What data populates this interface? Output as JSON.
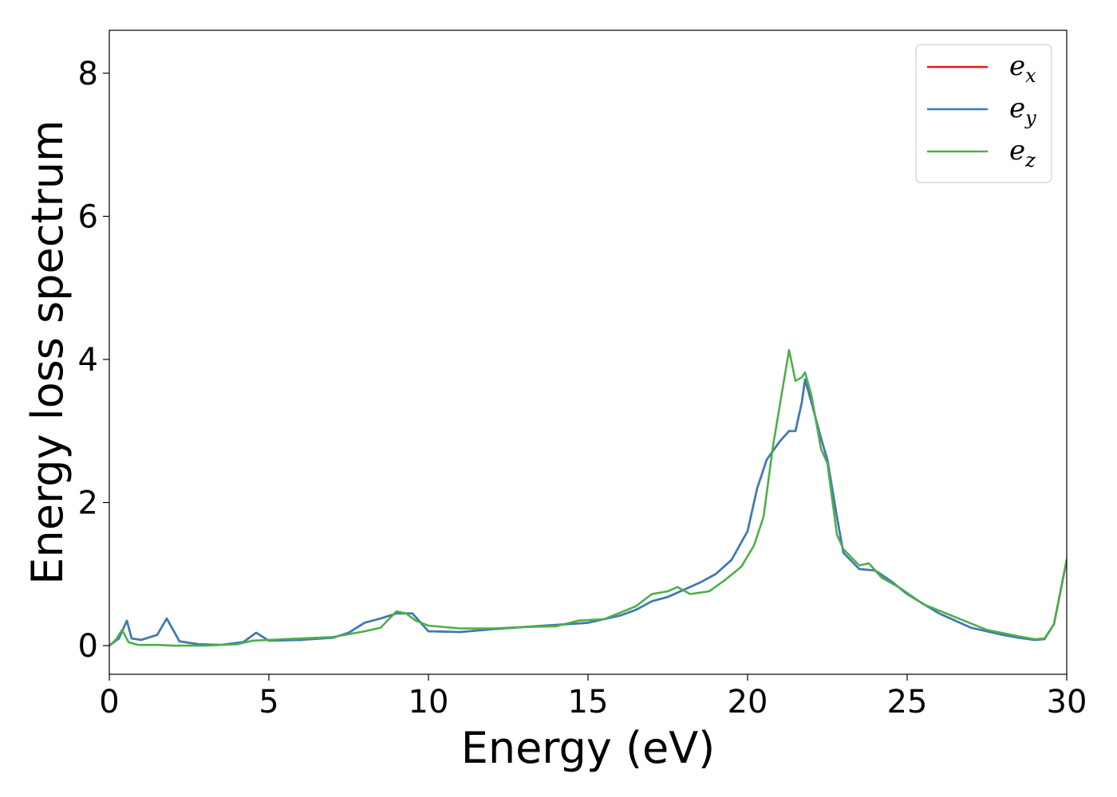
{
  "chart_data": {
    "type": "line",
    "title": "",
    "xlabel": "Energy (eV)",
    "ylabel": "Energy loss spectrum",
    "xlim": [
      0,
      30
    ],
    "ylim": [
      -0.4,
      8.6
    ],
    "xticks": [
      0,
      5,
      10,
      15,
      20,
      25,
      30
    ],
    "yticks": [
      0,
      2,
      4,
      6,
      8
    ],
    "grid": false,
    "legend_position": "top-right",
    "series": [
      {
        "name": "e_x",
        "legend_base": "e",
        "legend_sub": "x",
        "color": "#e41a1c",
        "x": [
          0,
          0.3,
          0.5,
          0.55,
          0.7,
          1.0,
          1.5,
          1.8,
          1.9,
          2.2,
          2.8,
          3.5,
          4.2,
          4.6,
          5.0,
          6.0,
          7.0,
          7.5,
          8.0,
          8.5,
          9.0,
          9.5,
          10.0,
          11.0,
          12.0,
          13.0,
          14.0,
          15.0,
          16.0,
          16.5,
          17.0,
          17.5,
          18.0,
          18.5,
          19.0,
          19.5,
          20.0,
          20.3,
          20.6,
          21.0,
          21.3,
          21.5,
          21.7,
          21.8,
          22.0,
          22.3,
          22.5,
          22.8,
          23.0,
          23.5,
          24.0,
          24.5,
          25.0,
          26.0,
          27.0,
          28.0,
          28.5,
          29.0,
          29.3,
          29.6,
          30.0
        ],
        "y": [
          0,
          0.1,
          0.3,
          0.35,
          0.1,
          0.08,
          0.15,
          0.38,
          0.3,
          0.06,
          0.02,
          0.01,
          0.05,
          0.18,
          0.07,
          0.08,
          0.11,
          0.18,
          0.32,
          0.38,
          0.45,
          0.45,
          0.2,
          0.19,
          0.23,
          0.26,
          0.29,
          0.32,
          0.42,
          0.5,
          0.62,
          0.68,
          0.78,
          0.88,
          1.0,
          1.2,
          1.6,
          2.2,
          2.6,
          2.85,
          3.0,
          3.0,
          3.4,
          3.72,
          3.4,
          2.9,
          2.6,
          1.8,
          1.3,
          1.07,
          1.05,
          0.9,
          0.72,
          0.45,
          0.25,
          0.15,
          0.11,
          0.08,
          0.09,
          0.3,
          1.2
        ]
      },
      {
        "name": "e_y",
        "legend_base": "e",
        "legend_sub": "y",
        "color": "#377eb8",
        "x": [
          0,
          0.3,
          0.5,
          0.55,
          0.7,
          1.0,
          1.5,
          1.8,
          1.9,
          2.2,
          2.8,
          3.5,
          4.2,
          4.6,
          5.0,
          6.0,
          7.0,
          7.5,
          8.0,
          8.5,
          9.0,
          9.5,
          10.0,
          11.0,
          12.0,
          13.0,
          14.0,
          15.0,
          16.0,
          16.5,
          17.0,
          17.5,
          18.0,
          18.5,
          19.0,
          19.5,
          20.0,
          20.3,
          20.6,
          21.0,
          21.3,
          21.5,
          21.7,
          21.8,
          22.0,
          22.3,
          22.5,
          22.8,
          23.0,
          23.5,
          24.0,
          24.5,
          25.0,
          26.0,
          27.0,
          28.0,
          28.5,
          29.0,
          29.3,
          29.6,
          30.0
        ],
        "y": [
          0,
          0.1,
          0.3,
          0.35,
          0.1,
          0.08,
          0.15,
          0.38,
          0.3,
          0.06,
          0.02,
          0.01,
          0.05,
          0.18,
          0.07,
          0.08,
          0.11,
          0.18,
          0.32,
          0.38,
          0.45,
          0.45,
          0.2,
          0.19,
          0.23,
          0.26,
          0.29,
          0.32,
          0.42,
          0.5,
          0.62,
          0.68,
          0.78,
          0.88,
          1.0,
          1.2,
          1.6,
          2.2,
          2.6,
          2.85,
          3.0,
          3.0,
          3.4,
          3.72,
          3.4,
          2.9,
          2.6,
          1.8,
          1.3,
          1.07,
          1.05,
          0.9,
          0.72,
          0.45,
          0.25,
          0.15,
          0.11,
          0.08,
          0.09,
          0.3,
          1.2
        ]
      },
      {
        "name": "e_z",
        "legend_base": "e",
        "legend_sub": "z",
        "color": "#4daf4a",
        "x": [
          0,
          0.2,
          0.4,
          0.6,
          0.9,
          1.5,
          2.0,
          3.0,
          4.0,
          4.5,
          5.0,
          6.0,
          7.0,
          8.0,
          8.5,
          9.0,
          9.3,
          9.6,
          10.0,
          11.0,
          12.0,
          13.0,
          14.0,
          14.7,
          15.5,
          16.5,
          17.0,
          17.5,
          17.8,
          18.2,
          18.8,
          19.3,
          19.8,
          20.2,
          20.5,
          20.8,
          21.1,
          21.3,
          21.5,
          21.7,
          21.8,
          22.0,
          22.3,
          22.5,
          22.8,
          23.0,
          23.5,
          23.8,
          24.2,
          24.8,
          25.5,
          26.5,
          27.5,
          28.5,
          29.0,
          29.3,
          29.6,
          30.0
        ],
        "y": [
          0,
          0.08,
          0.22,
          0.05,
          0.01,
          0.01,
          0.0,
          0.0,
          0.02,
          0.07,
          0.08,
          0.1,
          0.12,
          0.2,
          0.25,
          0.48,
          0.45,
          0.35,
          0.28,
          0.24,
          0.24,
          0.26,
          0.27,
          0.35,
          0.37,
          0.55,
          0.72,
          0.76,
          0.82,
          0.72,
          0.76,
          0.92,
          1.1,
          1.4,
          1.8,
          2.8,
          3.6,
          4.13,
          3.7,
          3.75,
          3.82,
          3.5,
          2.75,
          2.55,
          1.55,
          1.35,
          1.12,
          1.15,
          0.95,
          0.8,
          0.58,
          0.4,
          0.22,
          0.13,
          0.09,
          0.1,
          0.3,
          1.2
        ]
      }
    ]
  }
}
